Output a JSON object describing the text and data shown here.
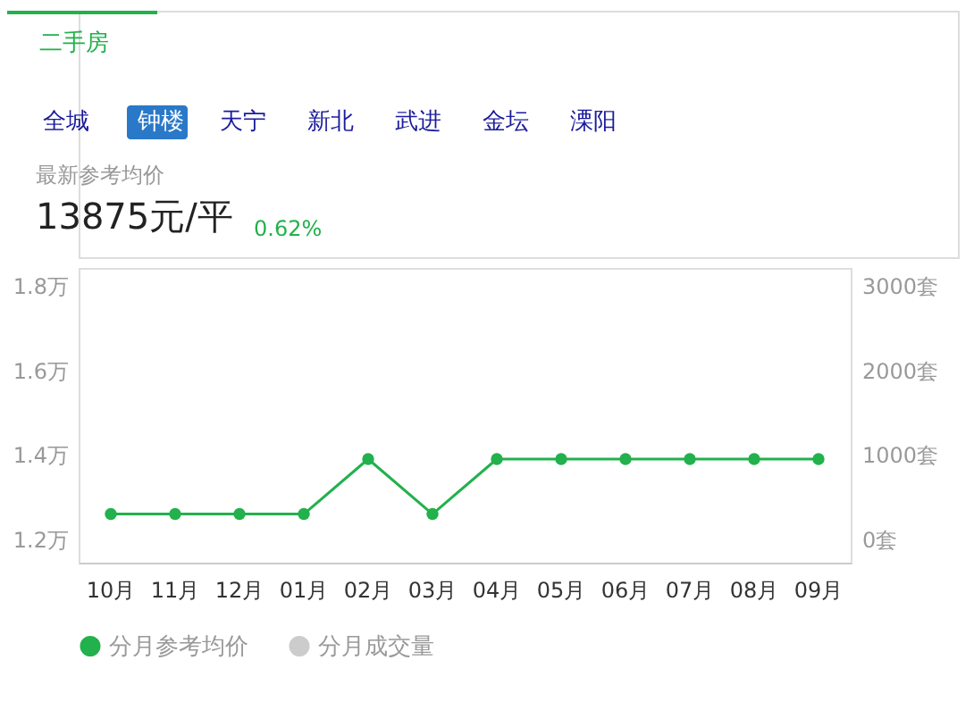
{
  "chart_data": {
    "type": "line",
    "annotations": [
      "二手房",
      "全城",
      "钟楼",
      "天宁",
      "新北",
      "武进",
      "金坛",
      "溧阳",
      "最新参考均价",
      "13875元/平",
      "0.62%"
    ],
    "categories": [
      "10月",
      "11月",
      "12月",
      "01月",
      "02月",
      "03月",
      "04月",
      "05月",
      "06月",
      "07月",
      "08月",
      "09月"
    ],
    "series": [
      {
        "name": "分月参考均价",
        "color": "#22b14c",
        "values": [
          1.26,
          1.26,
          1.26,
          1.26,
          1.39,
          1.26,
          1.39,
          1.39,
          1.39,
          1.39,
          1.39,
          1.39
        ]
      },
      {
        "name": "分月成交量",
        "type": "bar",
        "axis": "y2",
        "color": "#cccccc",
        "values": [
          null,
          null,
          null,
          null,
          null,
          null,
          null,
          null,
          null,
          null,
          null,
          null
        ]
      }
    ],
    "ylim": [
      1.145,
      1.842
    ],
    "yticks": [
      {
        "value": 1.2,
        "label": "1.2万"
      },
      {
        "value": 1.4,
        "label": "1.4万"
      },
      {
        "value": 1.6,
        "label": "1.6万"
      },
      {
        "value": 1.8,
        "label": "1.8万"
      }
    ],
    "y2lim": [
      -274,
      3209
    ],
    "y2ticks": [
      {
        "value": 0,
        "label": "0套"
      },
      {
        "value": 1000,
        "label": "1000套"
      },
      {
        "value": 2000,
        "label": "2000套"
      },
      {
        "value": 3000,
        "label": "3000套"
      }
    ],
    "marker": "circle",
    "line_style": "solid",
    "grid": false,
    "legend": "bottom"
  }
}
